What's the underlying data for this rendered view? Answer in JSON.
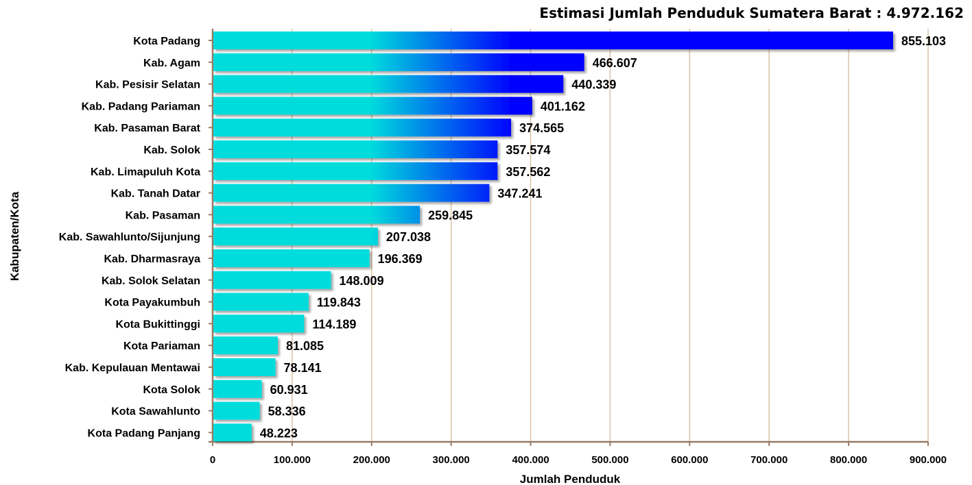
{
  "chart_data": {
    "type": "bar",
    "orientation": "horizontal",
    "title": "Estimasi Jumlah Penduduk Sumatera Barat : 4.972.162",
    "xlabel": "Jumlah Penduduk",
    "ylabel": "Kabupaten/Kota",
    "xlim": [
      0,
      900000
    ],
    "xticks": [
      0,
      100000,
      200000,
      300000,
      400000,
      500000,
      600000,
      700000,
      800000,
      900000
    ],
    "xtick_labels": [
      "0",
      "100.000",
      "200.000",
      "300.000",
      "400.000",
      "500.000",
      "600.000",
      "700.000",
      "800.000",
      "900.000"
    ],
    "grid": "vertical",
    "categories": [
      "Kota Padang",
      "Kab. Agam",
      "Kab. Pesisir Selatan",
      "Kab. Padang Pariaman",
      "Kab. Pasaman Barat",
      "Kab. Solok",
      "Kab. Limapuluh Kota",
      "Kab. Tanah Datar",
      "Kab. Pasaman",
      "Kab. Sawahlunto/Sijunjung",
      "Kab. Dharmasraya",
      "Kab. Solok Selatan",
      "Kota Payakumbuh",
      "Kota Bukittinggi",
      "Kota Pariaman",
      "Kab. Kepulauan Mentawai",
      "Kota Solok",
      "Kota Sawahlunto",
      "Kota Padang Panjang"
    ],
    "values": [
      855103,
      466607,
      440339,
      401162,
      374565,
      357574,
      357562,
      347241,
      259845,
      207038,
      196369,
      148009,
      119843,
      114189,
      81085,
      78141,
      60931,
      58336,
      48223
    ],
    "value_labels": [
      "855.103",
      "466.607",
      "440.339",
      "401.162",
      "374.565",
      "357.574",
      "357.562",
      "347.241",
      "259.845",
      "207.038",
      "196.369",
      "148.009",
      "119.843",
      "114.189",
      "81.085",
      "78.141",
      "60.931",
      "58.336",
      "48.223"
    ],
    "colors": {
      "bar_start": "#00dcdc",
      "bar_end": "#0000ff",
      "grid": "#d9c2a6",
      "axis": "#9a7a62"
    }
  }
}
